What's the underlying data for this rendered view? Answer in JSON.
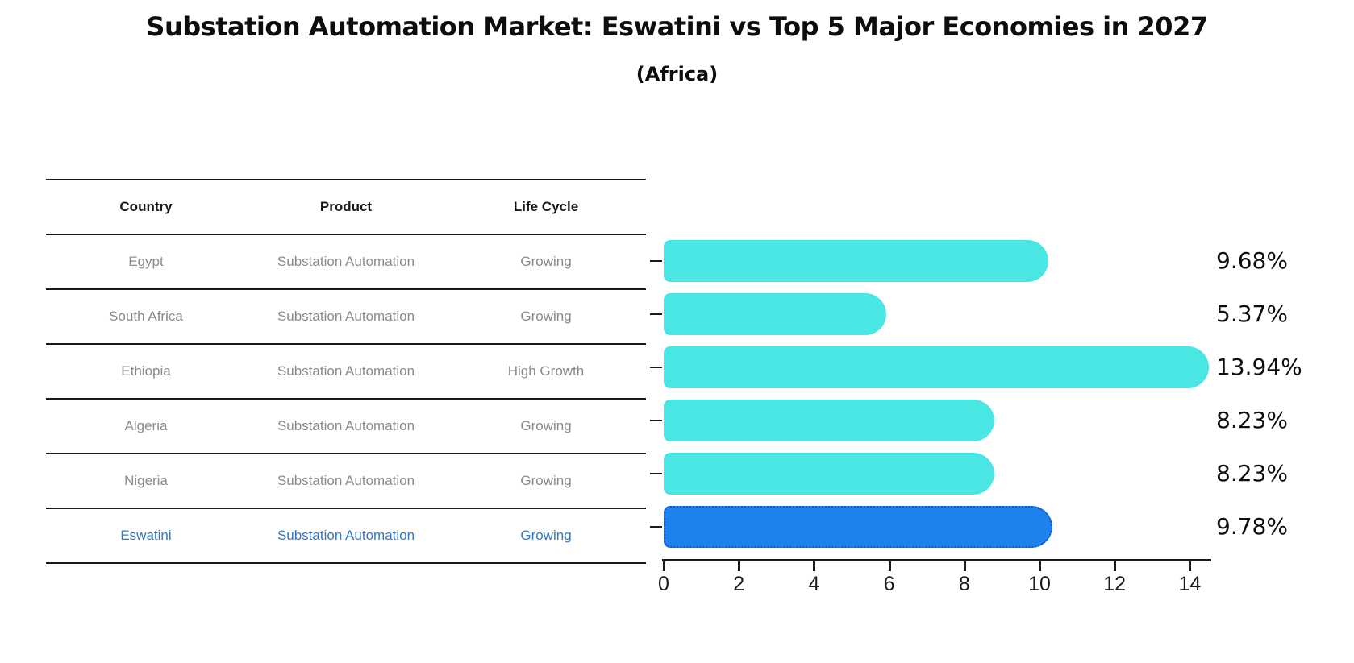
{
  "title": "Substation Automation Market: Eswatini vs Top 5 Major Economies in 2027",
  "subtitle": "(Africa)",
  "table": {
    "headers": [
      "Country",
      "Product",
      "Life Cycle"
    ],
    "rows": [
      {
        "country": "Egypt",
        "product": "Substation Automation",
        "life_cycle": "Growing",
        "highlight": false
      },
      {
        "country": "South Africa",
        "product": "Substation Automation",
        "life_cycle": "Growing",
        "highlight": false
      },
      {
        "country": "Ethiopia",
        "product": "Substation Automation",
        "life_cycle": "High Growth",
        "highlight": false
      },
      {
        "country": "Algeria",
        "product": "Substation Automation",
        "life_cycle": "Growing",
        "highlight": false
      },
      {
        "country": "Nigeria",
        "product": "Substation Automation",
        "life_cycle": "Growing",
        "highlight": false
      },
      {
        "country": "Eswatini",
        "product": "Substation Automation",
        "life_cycle": "Growing",
        "highlight": true
      }
    ]
  },
  "chart_data": {
    "type": "bar",
    "orientation": "horizontal",
    "categories": [
      "Egypt",
      "South Africa",
      "Ethiopia",
      "Algeria",
      "Nigeria",
      "Eswatini"
    ],
    "values": [
      9.68,
      5.37,
      13.94,
      8.23,
      8.23,
      9.78
    ],
    "value_labels": [
      "9.68%",
      "5.37%",
      "13.94%",
      "8.23%",
      "8.23%",
      "9.78%"
    ],
    "highlight_index": 5,
    "x_ticks": [
      0,
      2,
      4,
      6,
      8,
      10,
      12,
      14
    ],
    "xlim": [
      0,
      14.6
    ],
    "grid": false,
    "legend": "none",
    "bar_color": "#4AE6E3",
    "highlight_bar_color": "#1E82EE",
    "highlight_border_color": "#0E59C8",
    "highlight_text_color": "#3278BE"
  }
}
